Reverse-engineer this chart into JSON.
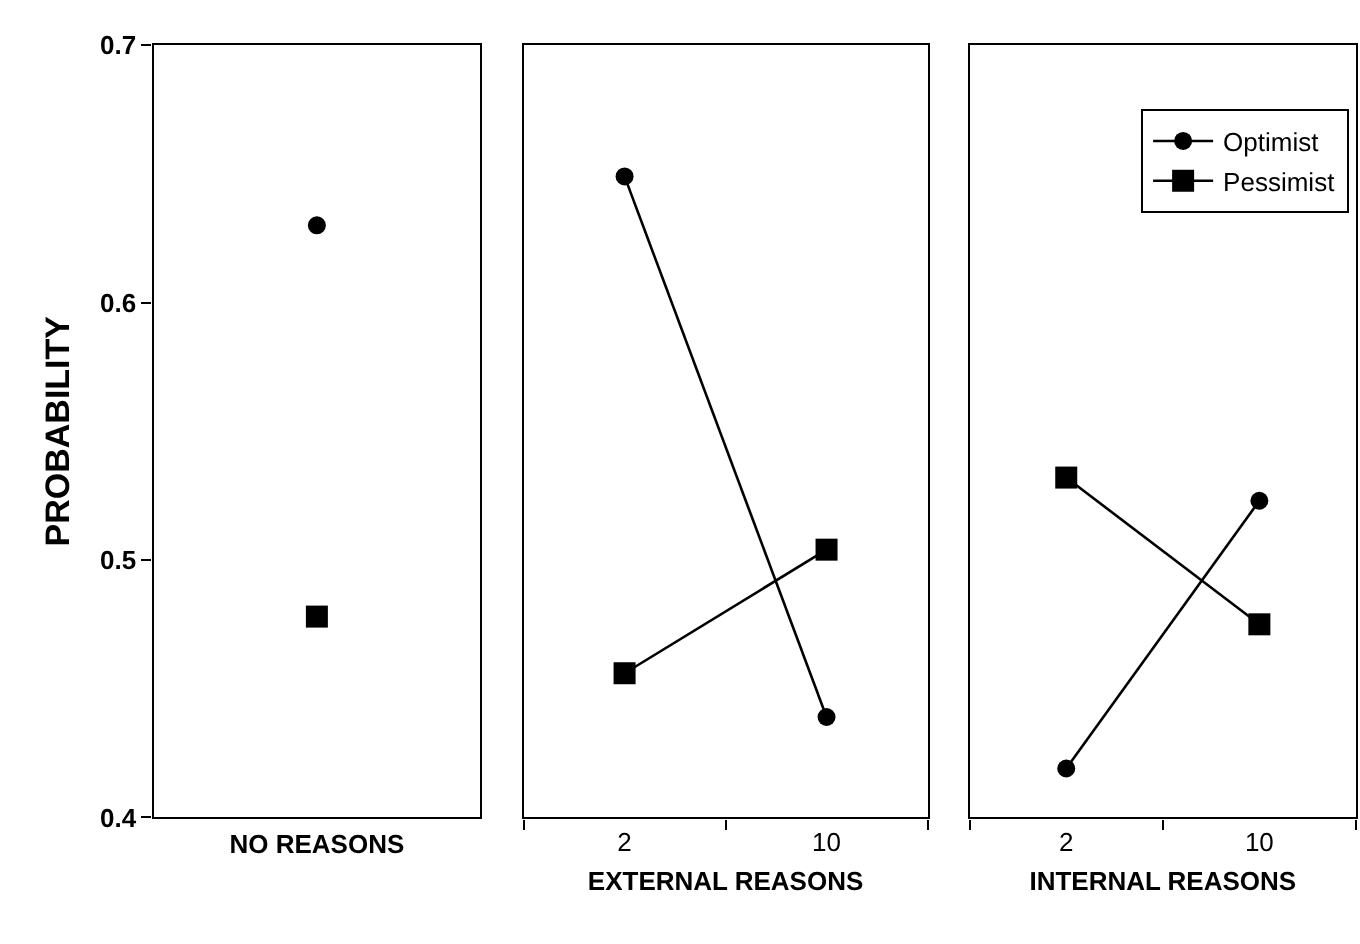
{
  "chart_data": [
    {
      "type": "scatter",
      "xlabel": "NO REASONS",
      "ylabel": "PROBABILITY",
      "categories": [
        null
      ],
      "ylim": [
        0.4,
        0.7
      ],
      "yticks": [
        0.4,
        0.5,
        0.6,
        0.7
      ],
      "tick_labels": "y",
      "legend": false,
      "series": [
        {
          "color": "#000000",
          "marker": "circle",
          "values": [
            0.63
          ]
        },
        {
          "color": "#000000",
          "marker": "square",
          "values": [
            0.478
          ]
        }
      ]
    },
    {
      "type": "line",
      "xlabel": "EXTERNAL REASONS",
      "categories": [
        "2",
        "10"
      ],
      "ylim": [
        0.4,
        0.7
      ],
      "tick_labels": "x",
      "legend": false,
      "line_style": "solid",
      "series": [
        {
          "color": "#000000",
          "marker": "circle",
          "values": [
            0.649,
            0.439
          ]
        },
        {
          "color": "#000000",
          "marker": "square",
          "values": [
            0.456,
            0.504
          ]
        }
      ]
    },
    {
      "type": "line",
      "xlabel": "INTERNAL REASONS",
      "categories": [
        "2",
        "10"
      ],
      "ylim": [
        0.4,
        0.7
      ],
      "tick_labels": "x",
      "legend": "top right",
      "line_style": "solid",
      "series": [
        {
          "name": "Optimist",
          "color": "#000000",
          "marker": "circle",
          "values": [
            0.419,
            0.523
          ]
        },
        {
          "name": "Pessimist",
          "color": "#000000",
          "marker": "square",
          "values": [
            0.532,
            0.475
          ]
        }
      ]
    }
  ]
}
